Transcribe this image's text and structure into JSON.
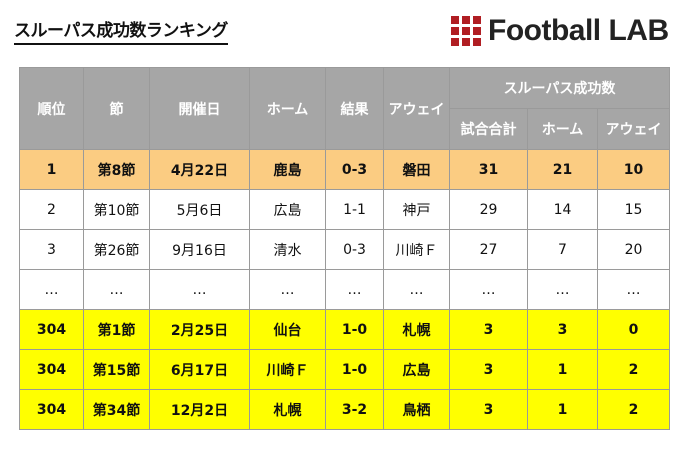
{
  "title": "スルーパス成功数ランキング",
  "logo": {
    "text": "Football LAB",
    "color": "#b01e23"
  },
  "table": {
    "headers": {
      "rank": "順位",
      "round": "節",
      "date": "開催日",
      "home": "ホーム",
      "result": "結果",
      "away": "アウェイ",
      "group": "スルーパス成功数",
      "total": "試合合計",
      "home_count": "ホーム",
      "away_count": "アウェイ"
    },
    "rows": [
      {
        "style": "top",
        "rank": "1",
        "round": "第8節",
        "date": "4月22日",
        "home": "鹿島",
        "result": "0-3",
        "away": "磐田",
        "total": "31",
        "home_count": "21",
        "away_count": "10"
      },
      {
        "style": "plain",
        "rank": "2",
        "round": "第10節",
        "date": "5月6日",
        "home": "広島",
        "result": "1-1",
        "away": "神戸",
        "total": "29",
        "home_count": "14",
        "away_count": "15"
      },
      {
        "style": "plain",
        "rank": "3",
        "round": "第26節",
        "date": "9月16日",
        "home": "清水",
        "result": "0-3",
        "away": "川崎Ｆ",
        "total": "27",
        "home_count": "7",
        "away_count": "20"
      },
      {
        "style": "plain",
        "rank": "…",
        "round": "…",
        "date": "…",
        "home": "…",
        "result": "…",
        "away": "…",
        "total": "…",
        "home_count": "…",
        "away_count": "…"
      },
      {
        "style": "low",
        "rank": "304",
        "round": "第1節",
        "date": "2月25日",
        "home": "仙台",
        "result": "1-0",
        "away": "札幌",
        "total": "3",
        "home_count": "3",
        "away_count": "0"
      },
      {
        "style": "low",
        "rank": "304",
        "round": "第15節",
        "date": "6月17日",
        "home": "川崎Ｆ",
        "result": "1-0",
        "away": "広島",
        "total": "3",
        "home_count": "1",
        "away_count": "2"
      },
      {
        "style": "low",
        "rank": "304",
        "round": "第34節",
        "date": "12月2日",
        "home": "札幌",
        "result": "3-2",
        "away": "鳥栖",
        "total": "3",
        "home_count": "1",
        "away_count": "2"
      }
    ]
  }
}
